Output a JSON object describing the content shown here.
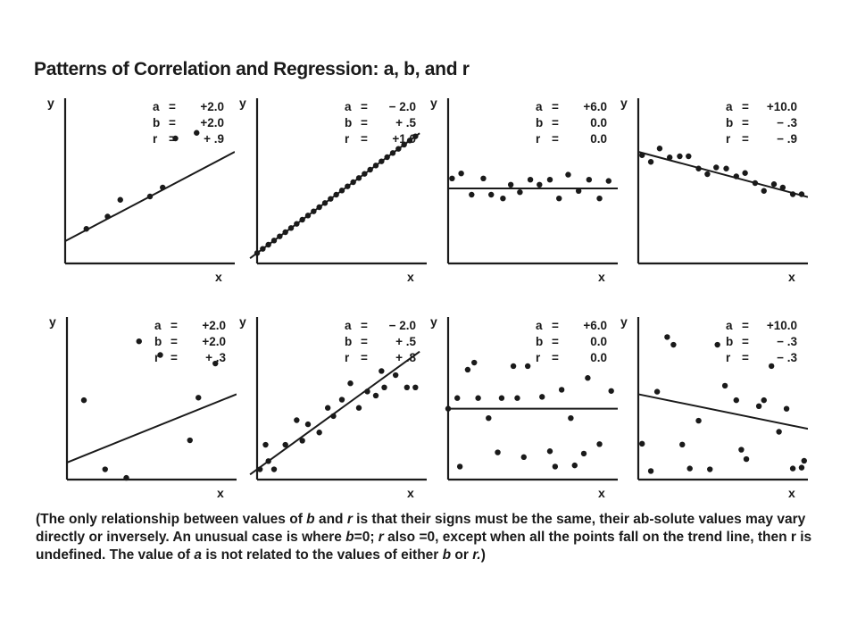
{
  "title": "Patterns of Correlation and Regression: a, b, and r",
  "chart_data": [
    {
      "type": "scatter",
      "xlabel": "x",
      "ylabel": "y",
      "coefficients": [
        {
          "label": "a",
          "value": "+2.0"
        },
        {
          "label": "b",
          "value": "+2.0"
        },
        {
          "label": "r",
          "value": "+ .9"
        }
      ],
      "line": {
        "intercept": 2.0,
        "slope": 2.0
      },
      "points": [
        [
          0.5,
          3.1
        ],
        [
          1.0,
          4.2
        ],
        [
          1.3,
          5.7
        ],
        [
          2.0,
          6.0
        ],
        [
          2.3,
          6.8
        ],
        [
          2.6,
          11.2
        ],
        [
          3.1,
          11.7
        ]
      ]
    },
    {
      "type": "scatter",
      "xlabel": "x",
      "ylabel": "y",
      "coefficients": [
        {
          "label": "a",
          "value": "− 2.0"
        },
        {
          "label": "b",
          "value": "+ .5"
        },
        {
          "label": "r",
          "value": "+1.0"
        }
      ],
      "line": {
        "intercept": -2.0,
        "slope": 0.5
      },
      "points": [
        [
          0,
          -2.0
        ],
        [
          0.8,
          -1.6
        ],
        [
          1.6,
          -1.2
        ],
        [
          2.4,
          -0.8
        ],
        [
          3.2,
          -0.4
        ],
        [
          4.0,
          0.0
        ],
        [
          4.8,
          0.4
        ],
        [
          5.6,
          0.8
        ],
        [
          6.4,
          1.2
        ],
        [
          7.2,
          1.6
        ],
        [
          8.0,
          2.0
        ],
        [
          8.8,
          2.4
        ],
        [
          9.6,
          2.8
        ],
        [
          10.4,
          3.2
        ],
        [
          11.2,
          3.6
        ],
        [
          12.0,
          4.0
        ],
        [
          12.8,
          4.4
        ],
        [
          13.6,
          4.8
        ],
        [
          14.4,
          5.2
        ],
        [
          15.2,
          5.6
        ],
        [
          16.0,
          6.0
        ],
        [
          16.8,
          6.4
        ],
        [
          17.6,
          6.8
        ],
        [
          18.4,
          7.2
        ],
        [
          19.2,
          7.6
        ],
        [
          20.0,
          8.0
        ],
        [
          20.8,
          8.4
        ],
        [
          21.6,
          8.8
        ],
        [
          22.4,
          9.2
        ]
      ]
    },
    {
      "type": "scatter",
      "xlabel": "x",
      "ylabel": "y",
      "coefficients": [
        {
          "label": "a",
          "value": "+6.0"
        },
        {
          "label": "b",
          "value": "0.0"
        },
        {
          "label": "r",
          "value": "0.0"
        }
      ],
      "line": {
        "intercept": 6.0,
        "slope": 0.0
      },
      "points": [
        [
          0.3,
          6.8
        ],
        [
          1.0,
          7.2
        ],
        [
          1.8,
          5.5
        ],
        [
          2.7,
          6.8
        ],
        [
          3.3,
          5.5
        ],
        [
          4.2,
          5.2
        ],
        [
          4.8,
          6.3
        ],
        [
          5.5,
          5.7
        ],
        [
          6.3,
          6.7
        ],
        [
          7.0,
          6.3
        ],
        [
          7.8,
          6.7
        ],
        [
          8.5,
          5.2
        ],
        [
          9.2,
          7.1
        ],
        [
          10.0,
          5.8
        ],
        [
          10.8,
          6.7
        ],
        [
          11.6,
          5.2
        ],
        [
          12.3,
          6.6
        ]
      ]
    },
    {
      "type": "scatter",
      "xlabel": "x",
      "ylabel": "y",
      "coefficients": [
        {
          "label": "a",
          "value": "+10.0"
        },
        {
          "label": "b",
          "value": "−   .3"
        },
        {
          "label": "r",
          "value": "−   .9"
        }
      ],
      "line": {
        "intercept": 10.0,
        "slope": -0.3
      },
      "points": [
        [
          0.3,
          9.7
        ],
        [
          1.0,
          9.1
        ],
        [
          1.7,
          10.3
        ],
        [
          2.5,
          9.5
        ],
        [
          3.3,
          9.6
        ],
        [
          4.0,
          9.6
        ],
        [
          4.8,
          8.5
        ],
        [
          5.5,
          8.0
        ],
        [
          6.2,
          8.6
        ],
        [
          7.0,
          8.5
        ],
        [
          7.8,
          7.8
        ],
        [
          8.5,
          8.1
        ],
        [
          9.3,
          7.2
        ],
        [
          10.0,
          6.5
        ],
        [
          10.8,
          7.1
        ],
        [
          11.5,
          6.8
        ],
        [
          12.3,
          6.2
        ],
        [
          13.0,
          6.2
        ]
      ]
    },
    {
      "type": "scatter",
      "xlabel": "x",
      "ylabel": "y",
      "coefficients": [
        {
          "label": "a",
          "value": "+2.0"
        },
        {
          "label": "b",
          "value": "+2.0"
        },
        {
          "label": "r",
          "value": "+ .3"
        }
      ],
      "line": {
        "intercept": 2.0,
        "slope": 2.0
      },
      "points": [
        [
          0.4,
          9.3
        ],
        [
          0.9,
          1.2
        ],
        [
          1.4,
          0.2
        ],
        [
          1.7,
          16.2
        ],
        [
          2.2,
          14.6
        ],
        [
          2.9,
          4.6
        ],
        [
          3.1,
          9.6
        ],
        [
          3.5,
          13.6
        ]
      ]
    },
    {
      "type": "scatter",
      "xlabel": "x",
      "ylabel": "y",
      "coefficients": [
        {
          "label": "a",
          "value": "− 2.0"
        },
        {
          "label": "b",
          "value": "+ .5"
        },
        {
          "label": "r",
          "value": "+ .8"
        }
      ],
      "line": {
        "intercept": -2.0,
        "slope": 0.5
      },
      "points": [
        [
          0.4,
          -2.0
        ],
        [
          1.2,
          0.4
        ],
        [
          1.6,
          -1.2
        ],
        [
          2.4,
          -2.0
        ],
        [
          4.0,
          0.4
        ],
        [
          5.6,
          2.8
        ],
        [
          6.4,
          0.8
        ],
        [
          7.2,
          2.4
        ],
        [
          8.8,
          1.6
        ],
        [
          10.0,
          4.0
        ],
        [
          10.8,
          3.2
        ],
        [
          12.0,
          4.8
        ],
        [
          13.2,
          6.4
        ],
        [
          14.4,
          4.0
        ],
        [
          15.6,
          5.6
        ],
        [
          16.8,
          5.2
        ],
        [
          17.6,
          7.6
        ],
        [
          18.0,
          6.0
        ],
        [
          19.6,
          7.2
        ],
        [
          21.2,
          6.0
        ],
        [
          22.4,
          6.0
        ]
      ]
    },
    {
      "type": "scatter",
      "xlabel": "x",
      "ylabel": "y",
      "coefficients": [
        {
          "label": "a",
          "value": "+6.0"
        },
        {
          "label": "b",
          "value": "0.0"
        },
        {
          "label": "r",
          "value": "0.0"
        }
      ],
      "line": {
        "intercept": 6.0,
        "slope": 0.0
      },
      "points": [
        [
          0.0,
          6.0
        ],
        [
          0.7,
          6.9
        ],
        [
          0.9,
          1.1
        ],
        [
          1.5,
          9.3
        ],
        [
          2.0,
          9.9
        ],
        [
          2.3,
          6.9
        ],
        [
          3.1,
          5.2
        ],
        [
          3.8,
          2.3
        ],
        [
          4.1,
          6.9
        ],
        [
          5.0,
          9.6
        ],
        [
          5.3,
          6.9
        ],
        [
          5.8,
          1.9
        ],
        [
          6.1,
          9.6
        ],
        [
          7.2,
          7.0
        ],
        [
          7.8,
          2.4
        ],
        [
          8.2,
          1.1
        ],
        [
          8.7,
          7.6
        ],
        [
          9.4,
          5.2
        ],
        [
          9.7,
          1.2
        ],
        [
          10.4,
          2.2
        ],
        [
          10.7,
          8.6
        ],
        [
          11.6,
          3.0
        ],
        [
          12.5,
          7.5
        ]
      ]
    },
    {
      "type": "scatter",
      "xlabel": "x",
      "ylabel": "y",
      "coefficients": [
        {
          "label": "a",
          "value": "+10.0"
        },
        {
          "label": "b",
          "value": "−   .3"
        },
        {
          "label": "r",
          "value": "−   .3"
        }
      ],
      "line": {
        "intercept": 10.0,
        "slope": -0.3
      },
      "points": [
        [
          0.3,
          4.2
        ],
        [
          1.0,
          1.0
        ],
        [
          1.5,
          10.3
        ],
        [
          2.3,
          16.7
        ],
        [
          2.8,
          15.8
        ],
        [
          3.5,
          4.1
        ],
        [
          4.1,
          1.3
        ],
        [
          4.8,
          6.9
        ],
        [
          5.7,
          1.2
        ],
        [
          6.3,
          15.8
        ],
        [
          6.9,
          11.0
        ],
        [
          7.8,
          9.3
        ],
        [
          8.2,
          3.5
        ],
        [
          8.6,
          2.4
        ],
        [
          9.6,
          8.6
        ],
        [
          10.0,
          9.3
        ],
        [
          10.6,
          13.3
        ],
        [
          11.2,
          5.6
        ],
        [
          11.8,
          8.3
        ],
        [
          12.3,
          1.3
        ],
        [
          13.0,
          1.4
        ],
        [
          13.2,
          2.2
        ]
      ]
    }
  ],
  "caption": {
    "p1": "(The only relationship between values of ",
    "b1": "b",
    "p2": " and ",
    "r1": "r",
    "p3": " is that their signs must be the same, their ab-solute values may vary directly or inversely. An unusual case is where ",
    "b2": "b",
    "p4": "=0; ",
    "r2": "r",
    "p5": " also =0, except when all the points fall on the trend line, then r is undefined. The value of ",
    "a1": "a",
    "p6": " is not related to the values of either ",
    "b3": "b",
    "p7": " or ",
    "r3": "r.",
    "p8": ")"
  }
}
